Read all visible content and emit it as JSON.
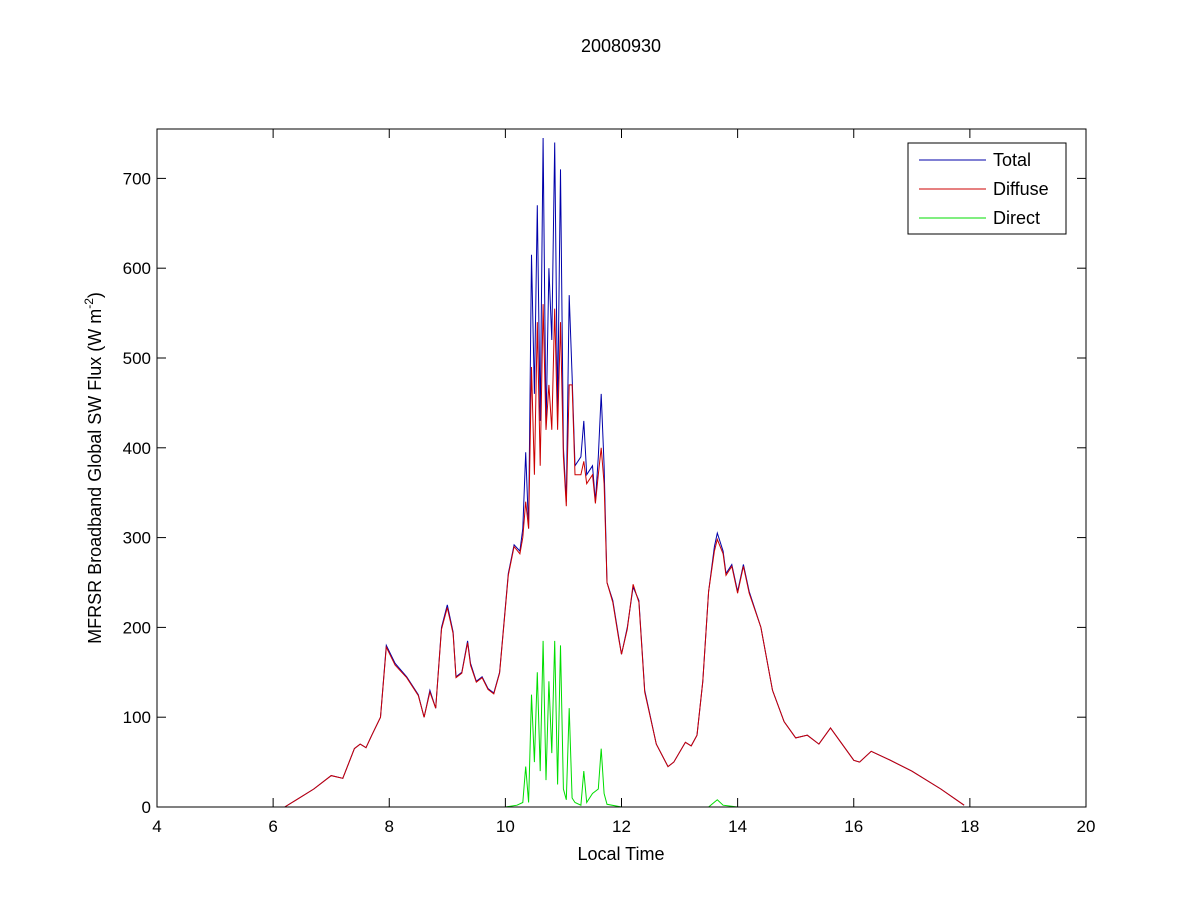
{
  "chart_data": {
    "type": "line",
    "title": "20080930",
    "xlabel": "Local Time",
    "ylabel_main": "MFRSR Broadband Global SW Flux (W m",
    "ylabel_sup": "-2",
    "ylabel_close": ")",
    "xlim": [
      4,
      20
    ],
    "ylim": [
      0,
      755
    ],
    "xticks": [
      4,
      6,
      8,
      10,
      12,
      14,
      16,
      18,
      20
    ],
    "yticks": [
      0,
      100,
      200,
      300,
      400,
      500,
      600,
      700
    ],
    "grid": false,
    "legend_position": "top-right",
    "series": [
      {
        "name": "Total",
        "color": "#0000aa",
        "points": [
          [
            6.2,
            0
          ],
          [
            6.4,
            8
          ],
          [
            6.7,
            20
          ],
          [
            7.0,
            35
          ],
          [
            7.2,
            32
          ],
          [
            7.4,
            65
          ],
          [
            7.5,
            70
          ],
          [
            7.6,
            66
          ],
          [
            7.7,
            80
          ],
          [
            7.85,
            100
          ],
          [
            7.95,
            180
          ],
          [
            8.1,
            160
          ],
          [
            8.3,
            145
          ],
          [
            8.5,
            125
          ],
          [
            8.6,
            100
          ],
          [
            8.7,
            130
          ],
          [
            8.8,
            110
          ],
          [
            8.9,
            200
          ],
          [
            9.0,
            225
          ],
          [
            9.1,
            195
          ],
          [
            9.15,
            145
          ],
          [
            9.25,
            150
          ],
          [
            9.35,
            185
          ],
          [
            9.4,
            160
          ],
          [
            9.5,
            140
          ],
          [
            9.6,
            145
          ],
          [
            9.7,
            132
          ],
          [
            9.8,
            127
          ],
          [
            9.9,
            150
          ],
          [
            10.05,
            260
          ],
          [
            10.15,
            292
          ],
          [
            10.25,
            285
          ],
          [
            10.3,
            310
          ],
          [
            10.35,
            395
          ],
          [
            10.4,
            310
          ],
          [
            10.45,
            615
          ],
          [
            10.5,
            460
          ],
          [
            10.55,
            670
          ],
          [
            10.6,
            430
          ],
          [
            10.65,
            745
          ],
          [
            10.7,
            420
          ],
          [
            10.75,
            600
          ],
          [
            10.8,
            520
          ],
          [
            10.85,
            740
          ],
          [
            10.9,
            440
          ],
          [
            10.95,
            710
          ],
          [
            11.0,
            400
          ],
          [
            11.05,
            340
          ],
          [
            11.1,
            570
          ],
          [
            11.15,
            480
          ],
          [
            11.2,
            380
          ],
          [
            11.3,
            390
          ],
          [
            11.35,
            430
          ],
          [
            11.4,
            370
          ],
          [
            11.5,
            380
          ],
          [
            11.55,
            340
          ],
          [
            11.6,
            390
          ],
          [
            11.65,
            460
          ],
          [
            11.7,
            380
          ],
          [
            11.75,
            250
          ],
          [
            11.85,
            230
          ],
          [
            11.95,
            190
          ],
          [
            12.0,
            170
          ],
          [
            12.1,
            200
          ],
          [
            12.2,
            245
          ],
          [
            12.3,
            230
          ],
          [
            12.4,
            130
          ],
          [
            12.6,
            70
          ],
          [
            12.8,
            45
          ],
          [
            12.9,
            50
          ],
          [
            13.1,
            72
          ],
          [
            13.2,
            68
          ],
          [
            13.3,
            80
          ],
          [
            13.4,
            140
          ],
          [
            13.5,
            240
          ],
          [
            13.6,
            290
          ],
          [
            13.65,
            305
          ],
          [
            13.75,
            285
          ],
          [
            13.8,
            260
          ],
          [
            13.9,
            270
          ],
          [
            14.0,
            240
          ],
          [
            14.1,
            270
          ],
          [
            14.2,
            240
          ],
          [
            14.4,
            200
          ],
          [
            14.6,
            130
          ],
          [
            14.8,
            95
          ],
          [
            15.0,
            77
          ],
          [
            15.2,
            80
          ],
          [
            15.4,
            70
          ],
          [
            15.6,
            88
          ],
          [
            15.8,
            70
          ],
          [
            16.0,
            52
          ],
          [
            16.1,
            50
          ],
          [
            16.3,
            62
          ],
          [
            16.6,
            53
          ],
          [
            17.0,
            40
          ],
          [
            17.5,
            20
          ],
          [
            17.9,
            2
          ]
        ]
      },
      {
        "name": "Diffuse",
        "color": "#cc0000",
        "points": [
          [
            6.2,
            0
          ],
          [
            6.4,
            8
          ],
          [
            6.7,
            20
          ],
          [
            7.0,
            35
          ],
          [
            7.2,
            32
          ],
          [
            7.4,
            65
          ],
          [
            7.5,
            70
          ],
          [
            7.6,
            66
          ],
          [
            7.7,
            80
          ],
          [
            7.85,
            100
          ],
          [
            7.95,
            178
          ],
          [
            8.1,
            158
          ],
          [
            8.3,
            144
          ],
          [
            8.5,
            124
          ],
          [
            8.6,
            100
          ],
          [
            8.7,
            128
          ],
          [
            8.8,
            110
          ],
          [
            8.9,
            198
          ],
          [
            9.0,
            222
          ],
          [
            9.1,
            193
          ],
          [
            9.15,
            144
          ],
          [
            9.25,
            149
          ],
          [
            9.35,
            183
          ],
          [
            9.4,
            158
          ],
          [
            9.5,
            139
          ],
          [
            9.6,
            144
          ],
          [
            9.7,
            131
          ],
          [
            9.8,
            126
          ],
          [
            9.9,
            149
          ],
          [
            10.05,
            258
          ],
          [
            10.15,
            290
          ],
          [
            10.25,
            282
          ],
          [
            10.3,
            300
          ],
          [
            10.35,
            340
          ],
          [
            10.4,
            310
          ],
          [
            10.45,
            490
          ],
          [
            10.5,
            370
          ],
          [
            10.55,
            540
          ],
          [
            10.6,
            380
          ],
          [
            10.65,
            560
          ],
          [
            10.7,
            420
          ],
          [
            10.75,
            470
          ],
          [
            10.8,
            420
          ],
          [
            10.85,
            555
          ],
          [
            10.9,
            420
          ],
          [
            10.95,
            540
          ],
          [
            11.0,
            390
          ],
          [
            11.05,
            335
          ],
          [
            11.1,
            470
          ],
          [
            11.15,
            470
          ],
          [
            11.2,
            370
          ],
          [
            11.3,
            370
          ],
          [
            11.35,
            385
          ],
          [
            11.4,
            360
          ],
          [
            11.5,
            370
          ],
          [
            11.55,
            338
          ],
          [
            11.6,
            370
          ],
          [
            11.65,
            400
          ],
          [
            11.7,
            360
          ],
          [
            11.75,
            250
          ],
          [
            11.85,
            228
          ],
          [
            11.95,
            188
          ],
          [
            12.0,
            170
          ],
          [
            12.1,
            198
          ],
          [
            12.2,
            248
          ],
          [
            12.3,
            228
          ],
          [
            12.4,
            128
          ],
          [
            12.6,
            70
          ],
          [
            12.8,
            45
          ],
          [
            12.9,
            50
          ],
          [
            13.1,
            72
          ],
          [
            13.2,
            68
          ],
          [
            13.3,
            80
          ],
          [
            13.4,
            140
          ],
          [
            13.5,
            240
          ],
          [
            13.6,
            285
          ],
          [
            13.65,
            298
          ],
          [
            13.75,
            282
          ],
          [
            13.8,
            258
          ],
          [
            13.9,
            268
          ],
          [
            14.0,
            238
          ],
          [
            14.1,
            268
          ],
          [
            14.2,
            238
          ],
          [
            14.4,
            200
          ],
          [
            14.6,
            130
          ],
          [
            14.8,
            95
          ],
          [
            15.0,
            77
          ],
          [
            15.2,
            80
          ],
          [
            15.4,
            70
          ],
          [
            15.6,
            88
          ],
          [
            15.8,
            70
          ],
          [
            16.0,
            52
          ],
          [
            16.1,
            50
          ],
          [
            16.3,
            62
          ],
          [
            16.6,
            53
          ],
          [
            17.0,
            40
          ],
          [
            17.5,
            20
          ],
          [
            17.9,
            2
          ]
        ]
      },
      {
        "name": "Direct",
        "color": "#00dd00",
        "points": [
          [
            6.2,
            0
          ],
          [
            8.0,
            0
          ],
          [
            9.0,
            0
          ],
          [
            10.0,
            0
          ],
          [
            10.2,
            2
          ],
          [
            10.3,
            5
          ],
          [
            10.35,
            45
          ],
          [
            10.4,
            5
          ],
          [
            10.45,
            125
          ],
          [
            10.5,
            50
          ],
          [
            10.55,
            150
          ],
          [
            10.6,
            40
          ],
          [
            10.65,
            185
          ],
          [
            10.7,
            30
          ],
          [
            10.75,
            140
          ],
          [
            10.8,
            60
          ],
          [
            10.85,
            185
          ],
          [
            10.9,
            25
          ],
          [
            10.95,
            180
          ],
          [
            11.0,
            20
          ],
          [
            11.05,
            8
          ],
          [
            11.1,
            110
          ],
          [
            11.15,
            10
          ],
          [
            11.2,
            5
          ],
          [
            11.3,
            2
          ],
          [
            11.35,
            40
          ],
          [
            11.4,
            5
          ],
          [
            11.5,
            15
          ],
          [
            11.6,
            20
          ],
          [
            11.65,
            65
          ],
          [
            11.7,
            15
          ],
          [
            11.75,
            3
          ],
          [
            12.0,
            0
          ],
          [
            13.0,
            0
          ],
          [
            13.5,
            0
          ],
          [
            13.65,
            8
          ],
          [
            13.75,
            2
          ],
          [
            14.0,
            0
          ],
          [
            16.0,
            0
          ],
          [
            17.9,
            0
          ]
        ]
      }
    ]
  }
}
